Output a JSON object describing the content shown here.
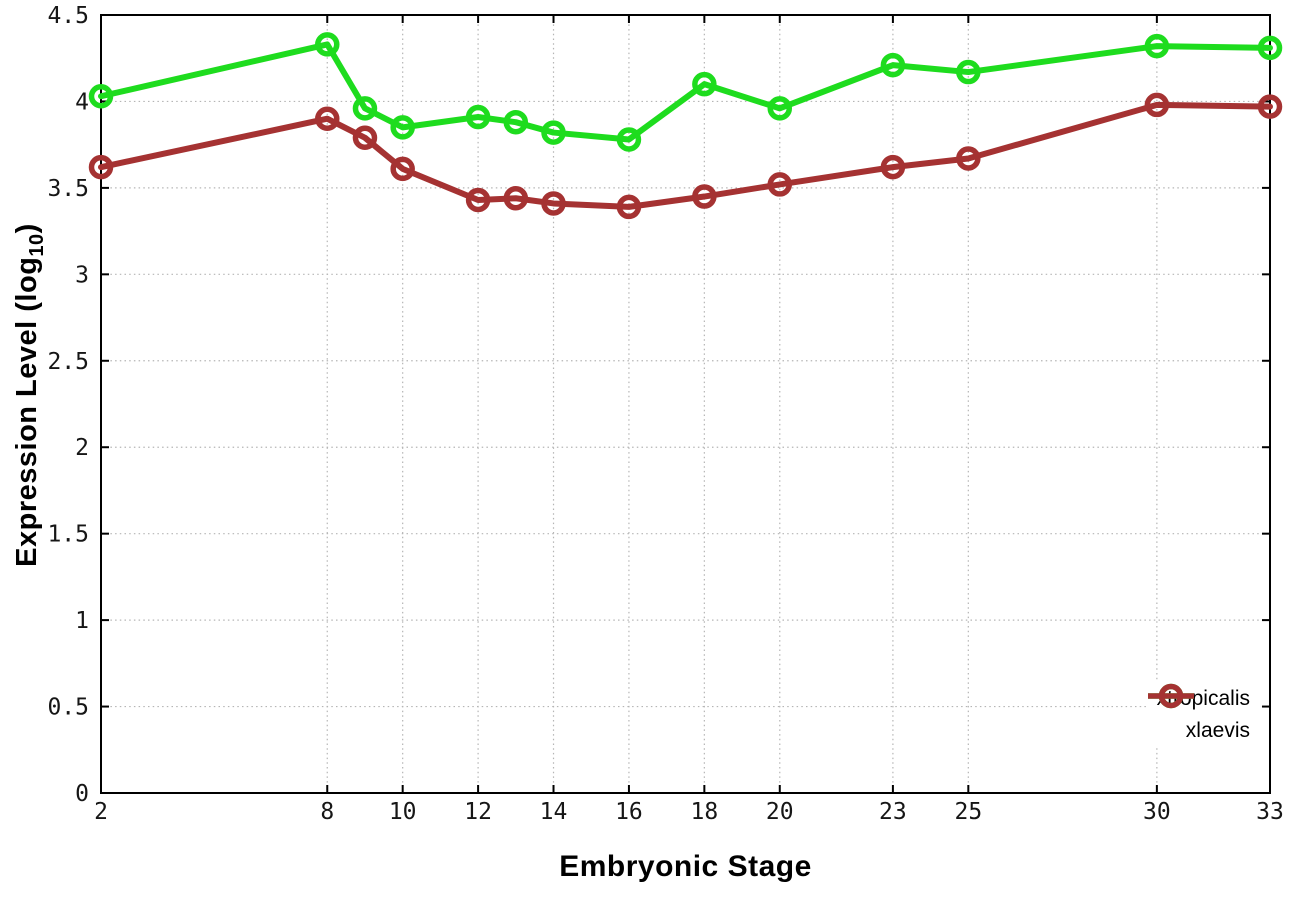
{
  "chart_data": {
    "type": "line",
    "title": "",
    "xlabel": "Embryonic Stage",
    "ylabel": "Expression Level (log10)",
    "ylabel_parts": {
      "pre": "Expression Level (log",
      "sub": "10",
      "post": ")"
    },
    "xlim": [
      2,
      33
    ],
    "ylim": [
      0,
      4.5
    ],
    "x_ticks": [
      2,
      8,
      10,
      12,
      14,
      16,
      18,
      20,
      23,
      25,
      30,
      33
    ],
    "x_tick_labels": [
      "2",
      "8",
      "10",
      "12",
      "14",
      "16",
      "18",
      "20",
      "23",
      "25",
      "30",
      "33"
    ],
    "y_ticks": [
      0,
      0.5,
      1,
      1.5,
      2,
      2.5,
      3,
      3.5,
      4,
      4.5
    ],
    "y_tick_labels": [
      "0",
      "0.5",
      "1",
      "1.5",
      "2",
      "2.5",
      "3",
      "3.5",
      "4",
      "4.5"
    ],
    "grid": true,
    "legend_position": "bottom-right",
    "x": [
      2,
      8,
      9,
      10,
      12,
      13,
      14,
      16,
      18,
      20,
      23,
      25,
      30,
      33
    ],
    "series": [
      {
        "name": "xtropicalis",
        "color": "#1edc1e",
        "values": [
          4.03,
          4.33,
          3.96,
          3.85,
          3.91,
          3.88,
          3.82,
          3.78,
          4.1,
          3.96,
          4.21,
          4.17,
          4.32,
          4.31
        ]
      },
      {
        "name": "xlaevis",
        "color": "#a53232",
        "values": [
          3.62,
          3.9,
          3.79,
          3.61,
          3.43,
          3.44,
          3.41,
          3.39,
          3.45,
          3.52,
          3.62,
          3.67,
          3.98,
          3.97
        ]
      }
    ]
  },
  "style": {
    "grid_color": "#b5b5b5",
    "axis_color": "#000000",
    "tick_label_color": "#161616",
    "background": "#ffffff"
  }
}
